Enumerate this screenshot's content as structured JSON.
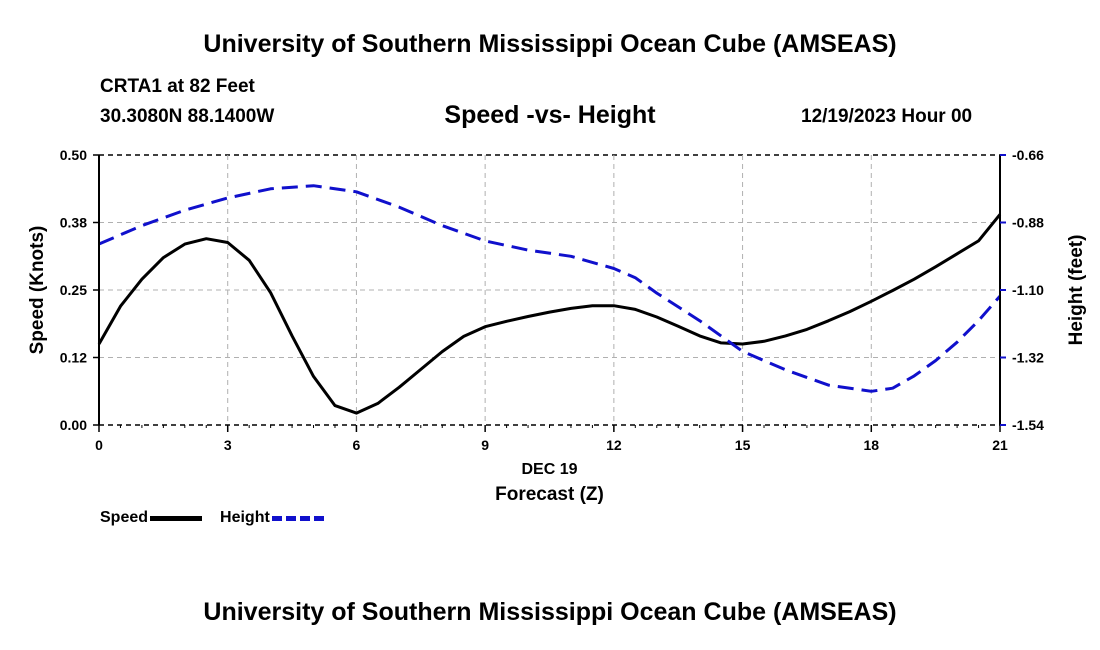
{
  "header": {
    "title": "University of Southern Mississippi Ocean Cube (AMSEAS)",
    "station": "CRTA1 at 82 Feet",
    "coords": "30.3080N  88.1400W",
    "plot_title": "Speed -vs- Height",
    "datetime": "12/19/2023 Hour 00"
  },
  "footer": {
    "title": "University of Southern Mississippi Ocean Cube (AMSEAS)"
  },
  "legend": {
    "speed_label": "Speed",
    "height_label": "Height"
  },
  "colors": {
    "speed": "#000000",
    "height": "#1010cc",
    "grid": "#b0b0b0"
  },
  "chart_data": {
    "type": "line",
    "title": "Speed -vs- Height",
    "xlabel_line1": "DEC 19",
    "xlabel": "Forecast (Z)",
    "ylabel": "Speed (Knots)",
    "y2label": "Height (feet)",
    "xlim": [
      0,
      21
    ],
    "ylim": [
      0,
      0.5
    ],
    "y2lim": [
      -1.54,
      -0.66
    ],
    "x_ticks": [
      0,
      3,
      6,
      9,
      12,
      15,
      18,
      21
    ],
    "x_tick_labels": [
      "0",
      "3",
      "6",
      "9",
      "12",
      "15",
      "18",
      "21"
    ],
    "y_ticks": [
      0,
      0.125,
      0.25,
      0.375,
      0.5
    ],
    "y_tick_labels": [
      "0.00",
      "0.12",
      "0.25",
      "0.38",
      "0.50"
    ],
    "y2_ticks": [
      -1.54,
      -1.32,
      -1.1,
      -0.88,
      -0.66
    ],
    "y2_tick_labels": [
      "-1.54",
      "-1.32",
      "-1.10",
      "-0.88",
      "-0.66"
    ],
    "grid": true,
    "legend_position": "bottom-left",
    "series": [
      {
        "name": "Speed",
        "axis": "left",
        "style": "solid",
        "x": [
          0,
          0.5,
          1,
          1.5,
          2,
          2.5,
          3,
          3.5,
          4,
          4.5,
          5,
          5.5,
          6,
          6.5,
          7,
          7.5,
          8,
          8.5,
          9,
          9.5,
          10,
          10.5,
          11,
          11.5,
          12,
          12.5,
          13,
          13.5,
          14,
          14.5,
          15,
          15.5,
          16,
          16.5,
          17,
          17.5,
          18,
          18.5,
          19,
          19.5,
          20,
          20.5,
          21
        ],
        "values": [
          0.15,
          0.22,
          0.27,
          0.31,
          0.335,
          0.345,
          0.338,
          0.305,
          0.245,
          0.165,
          0.09,
          0.036,
          0.022,
          0.04,
          0.07,
          0.103,
          0.136,
          0.164,
          0.182,
          0.192,
          0.201,
          0.209,
          0.216,
          0.221,
          0.221,
          0.214,
          0.2,
          0.183,
          0.165,
          0.152,
          0.15,
          0.155,
          0.165,
          0.177,
          0.193,
          0.21,
          0.229,
          0.249,
          0.27,
          0.293,
          0.317,
          0.341,
          0.39
        ]
      },
      {
        "name": "Height",
        "axis": "right",
        "style": "dashed",
        "x": [
          0,
          1,
          2,
          3,
          4,
          5,
          6,
          7,
          8,
          9,
          10,
          11,
          12,
          12.5,
          13,
          14,
          15,
          16,
          17,
          18,
          18.5,
          19,
          19.5,
          20,
          20.5,
          21
        ],
        "values": [
          -0.95,
          -0.89,
          -0.84,
          -0.8,
          -0.77,
          -0.76,
          -0.78,
          -0.83,
          -0.89,
          -0.94,
          -0.97,
          -0.99,
          -1.03,
          -1.06,
          -1.11,
          -1.2,
          -1.3,
          -1.36,
          -1.41,
          -1.43,
          -1.42,
          -1.38,
          -1.33,
          -1.27,
          -1.2,
          -1.12
        ]
      }
    ]
  }
}
